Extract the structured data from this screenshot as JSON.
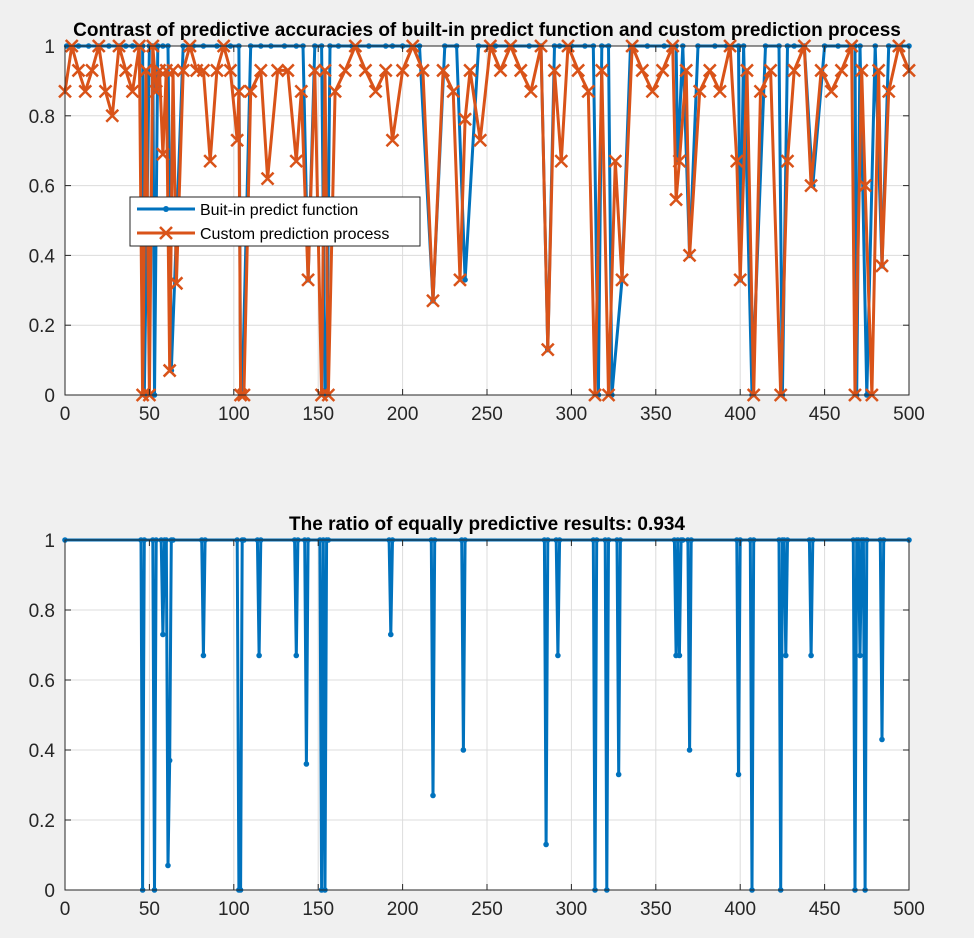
{
  "figure": {
    "background": "#f0f0f0"
  },
  "chart_data": [
    {
      "type": "line",
      "title": "Contrast of predictive accuracies of built-in predict function and custom prediction process",
      "xlabel": "",
      "ylabel": "",
      "xlim": [
        0,
        500
      ],
      "ylim": [
        0,
        1
      ],
      "xticks": [
        0,
        50,
        100,
        150,
        200,
        250,
        300,
        350,
        400,
        450,
        500
      ],
      "yticks": [
        0,
        0.2,
        0.4,
        0.6,
        0.8,
        1
      ],
      "grid": true,
      "legend_position": "upper-left",
      "series": [
        {
          "name": "Buit-in predict function",
          "color": "#0072BD",
          "marker": "dot",
          "x": [
            1,
            8,
            14,
            20,
            26,
            32,
            36,
            40,
            43,
            46,
            47,
            50,
            52,
            53,
            55,
            58,
            61,
            63,
            65,
            70,
            76,
            82,
            90,
            98,
            103,
            104,
            105,
            110,
            116,
            122,
            130,
            137,
            141,
            144,
            148,
            152,
            154,
            155,
            157,
            162,
            170,
            180,
            190,
            194,
            200,
            210,
            218,
            225,
            232,
            237,
            245,
            255,
            265,
            275,
            282,
            286,
            290,
            293,
            300,
            308,
            313,
            316,
            318,
            322,
            324,
            330,
            335,
            345,
            355,
            362,
            363,
            366,
            370,
            375,
            385,
            392,
            399,
            400,
            402,
            407,
            415,
            423,
            425,
            428,
            432,
            438,
            443,
            450,
            458,
            465,
            468,
            469,
            471,
            475,
            480,
            484,
            488,
            495,
            500
          ],
          "values": [
            1,
            1,
            1,
            1,
            1,
            1,
            1,
            1,
            1,
            1,
            0,
            1,
            1,
            0,
            1,
            1,
            1,
            0.07,
            0.33,
            1,
            1,
            1,
            1,
            1,
            1,
            0,
            0,
            1,
            1,
            1,
            1,
            1,
            1,
            0.33,
            1,
            1,
            0,
            0,
            1,
            1,
            1,
            1,
            1,
            1,
            1,
            1,
            0.27,
            1,
            1,
            0.33,
            1,
            1,
            1,
            1,
            1,
            0.13,
            1,
            1,
            1,
            1,
            1,
            0,
            1,
            1,
            0,
            0.33,
            1,
            1,
            1,
            1,
            0.67,
            1,
            0.4,
            1,
            1,
            1,
            1,
            0.33,
            1,
            0,
            1,
            1,
            0,
            1,
            1,
            1,
            0.6,
            1,
            1,
            1,
            1,
            0,
            1,
            0,
            1,
            0.37,
            1,
            1,
            1
          ]
        },
        {
          "name": "Custom prediction process",
          "color": "#D95319",
          "marker": "x",
          "x": [
            0,
            4,
            8,
            12,
            16,
            20,
            24,
            28,
            32,
            36,
            40,
            44,
            46,
            48,
            50,
            52,
            54,
            56,
            58,
            60,
            62,
            64,
            66,
            70,
            74,
            78,
            82,
            86,
            90,
            94,
            98,
            102,
            103,
            104,
            106,
            110,
            116,
            120,
            126,
            132,
            137,
            140,
            144,
            148,
            152,
            154,
            156,
            160,
            166,
            172,
            178,
            184,
            190,
            194,
            200,
            206,
            212,
            218,
            224,
            230,
            234,
            237,
            240,
            246,
            252,
            258,
            264,
            270,
            276,
            282,
            286,
            290,
            294,
            298,
            304,
            310,
            314,
            318,
            322,
            326,
            330,
            336,
            342,
            348,
            354,
            360,
            362,
            364,
            368,
            370,
            376,
            382,
            388,
            394,
            398,
            400,
            404,
            408,
            412,
            418,
            424,
            428,
            432,
            438,
            442,
            448,
            454,
            460,
            466,
            468,
            472,
            474,
            478,
            482,
            484,
            488,
            494,
            500
          ],
          "values": [
            0.87,
            1,
            0.93,
            0.87,
            0.93,
            1,
            0.87,
            0.8,
            1,
            0.93,
            0.87,
            1,
            0,
            0.93,
            0,
            1,
            0.87,
            0.93,
            0.69,
            0.93,
            0.07,
            0.93,
            0.32,
            0.93,
            1,
            0.93,
            0.93,
            0.67,
            0.93,
            1,
            0.93,
            0.73,
            0.87,
            0,
            0,
            0.87,
            0.93,
            0.62,
            0.93,
            0.93,
            0.67,
            0.87,
            0.33,
            0.93,
            0,
            0.93,
            0,
            0.87,
            0.93,
            1,
            0.93,
            0.87,
            0.93,
            0.73,
            0.93,
            1,
            0.93,
            0.27,
            0.93,
            0.87,
            0.33,
            0.79,
            0.93,
            0.73,
            1,
            0.93,
            1,
            0.93,
            0.87,
            1,
            0.13,
            0.93,
            0.67,
            1,
            0.93,
            0.87,
            0,
            0.93,
            0,
            0.67,
            0.33,
            1,
            0.93,
            0.87,
            0.93,
            1,
            0.56,
            0.67,
            0.93,
            0.4,
            0.87,
            0.93,
            0.87,
            1,
            0.67,
            0.33,
            0.93,
            0,
            0.87,
            0.93,
            0,
            0.67,
            0.93,
            1,
            0.6,
            0.93,
            0.87,
            0.93,
            1,
            0,
            0.93,
            0.6,
            0,
            0.93,
            0.37,
            0.87,
            1,
            0.93
          ]
        }
      ]
    },
    {
      "type": "line",
      "title": "The ratio of equally predictive results: 0.934",
      "xlabel": "",
      "ylabel": "",
      "xlim": [
        0,
        500
      ],
      "ylim": [
        0,
        1
      ],
      "xticks": [
        0,
        50,
        100,
        150,
        200,
        250,
        300,
        350,
        400,
        450,
        500
      ],
      "yticks": [
        0,
        0.2,
        0.4,
        0.6,
        0.8,
        1
      ],
      "grid": true,
      "series": [
        {
          "color": "#0072BD",
          "marker": "dot",
          "x": [
            0,
            45,
            46,
            47,
            52,
            53,
            54,
            57,
            58,
            59,
            60,
            61,
            62,
            63,
            64,
            81,
            82,
            83,
            102,
            103,
            104,
            105,
            106,
            114,
            115,
            116,
            136,
            137,
            138,
            142,
            143,
            144,
            151,
            152,
            153,
            154,
            155,
            156,
            192,
            193,
            194,
            217,
            218,
            219,
            235,
            236,
            237,
            284,
            285,
            286,
            291,
            292,
            293,
            313,
            314,
            315,
            320,
            321,
            322,
            327,
            328,
            329,
            361,
            362,
            363,
            364,
            365,
            366,
            369,
            370,
            371,
            398,
            399,
            400,
            406,
            407,
            408,
            423,
            424,
            425,
            426,
            427,
            428,
            441,
            442,
            443,
            467,
            468,
            469,
            470,
            471,
            472,
            473,
            474,
            475,
            483,
            484,
            485,
            500
          ],
          "values": [
            1,
            1,
            0,
            1,
            1,
            0,
            1,
            1,
            0.73,
            1,
            1,
            0.07,
            0.37,
            1,
            1,
            1,
            0.67,
            1,
            1,
            0,
            0,
            1,
            1,
            1,
            0.67,
            1,
            1,
            0.67,
            1,
            1,
            0.36,
            1,
            1,
            0,
            1,
            0,
            1,
            1,
            1,
            0.73,
            1,
            1,
            0.27,
            1,
            1,
            0.4,
            1,
            1,
            0.13,
            1,
            1,
            0.67,
            1,
            1,
            0,
            1,
            1,
            0,
            1,
            1,
            0.33,
            1,
            1,
            0.67,
            1,
            0.67,
            1,
            1,
            1,
            0.4,
            1,
            1,
            0.33,
            1,
            1,
            0,
            1,
            1,
            0,
            1,
            1,
            0.67,
            1,
            1,
            0.67,
            1,
            1,
            0,
            1,
            1,
            0.67,
            1,
            1,
            0,
            1,
            1,
            0.43,
            1,
            1
          ]
        }
      ]
    }
  ]
}
